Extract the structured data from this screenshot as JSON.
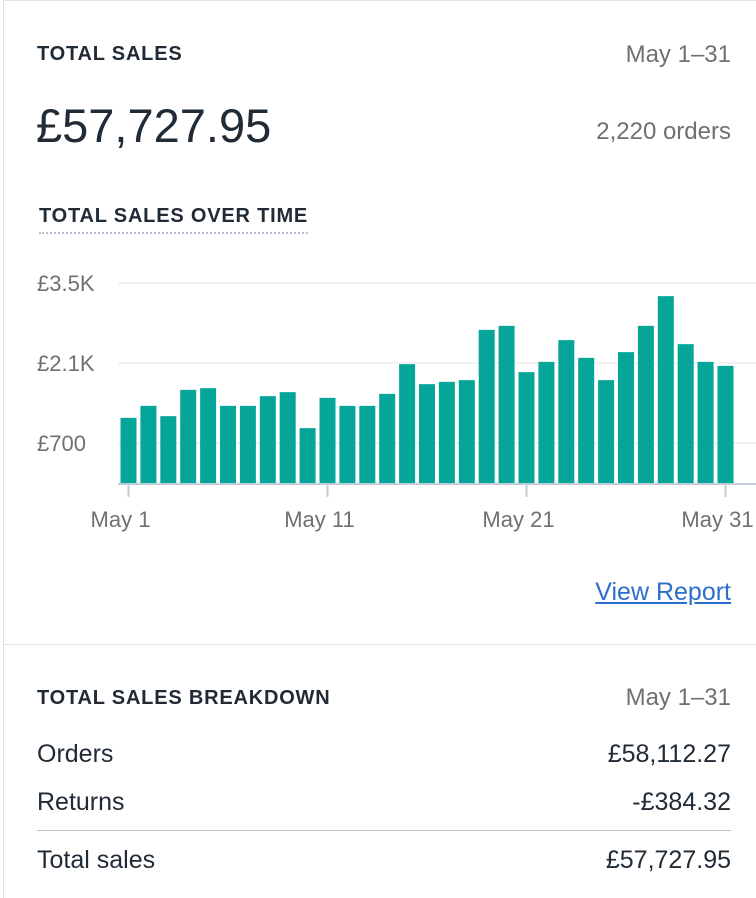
{
  "header": {
    "title": "TOTAL SALES",
    "date_range": "May 1–31",
    "total": "£57,727.95",
    "orders": "2,220 orders"
  },
  "chart_data": {
    "type": "bar",
    "title": "TOTAL SALES OVER TIME",
    "categories": [
      "May 1",
      null,
      null,
      null,
      null,
      null,
      null,
      null,
      null,
      null,
      "May 11",
      null,
      null,
      null,
      null,
      null,
      null,
      null,
      null,
      null,
      "May 21",
      null,
      null,
      null,
      null,
      null,
      null,
      null,
      null,
      null,
      "May 31"
    ],
    "values": [
      1140,
      1350,
      1170,
      1630,
      1660,
      1350,
      1350,
      1520,
      1590,
      960,
      1490,
      1350,
      1350,
      1560,
      2080,
      1730,
      1770,
      1800,
      2680,
      2750,
      1940,
      2120,
      2500,
      2190,
      1800,
      2290,
      2750,
      3270,
      2430,
      2120,
      2050
    ],
    "color": "#06a59a",
    "ylim": [
      0,
      3500
    ],
    "yticks": [
      {
        "value": 700,
        "label": "£700"
      },
      {
        "value": 2100,
        "label": "£2.1K"
      },
      {
        "value": 3500,
        "label": "£3.5K"
      }
    ],
    "grid": true
  },
  "link": "View Report",
  "breakdown": {
    "title": "TOTAL SALES BREAKDOWN",
    "date_range": "May 1–31",
    "rows": [
      [
        "Orders",
        "£58,112.27"
      ],
      [
        "Returns",
        "-£384.32"
      ],
      [
        "Total sales",
        "£57,727.95"
      ]
    ]
  }
}
